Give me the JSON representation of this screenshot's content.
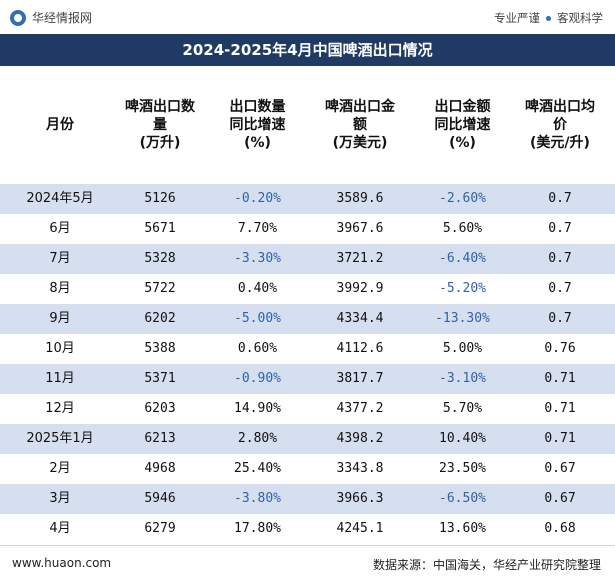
{
  "brand": {
    "name": "华经情报网",
    "tags": [
      "专业严谨",
      "客观科学"
    ]
  },
  "title": "2024-2025年4月中国啤酒出口情况",
  "columns": [
    "月份",
    "啤酒出口数\n量\n(万升)",
    "出口数量\n同比增速\n(%)",
    "啤酒出口金\n额\n(万美元)",
    "出口金额\n同比增速\n(%)",
    "啤酒出口均\n价\n(美元/升)"
  ],
  "rows": [
    [
      "2024年5月",
      "5126",
      "-0.20%",
      "3589.6",
      "-2.60%",
      "0.7"
    ],
    [
      "6月",
      "5671",
      "7.70%",
      "3967.6",
      "5.60%",
      "0.7"
    ],
    [
      "7月",
      "5328",
      "-3.30%",
      "3721.2",
      "-6.40%",
      "0.7"
    ],
    [
      "8月",
      "5722",
      "0.40%",
      "3992.9",
      "-5.20%",
      "0.7"
    ],
    [
      "9月",
      "6202",
      "-5.00%",
      "4334.4",
      "-13.30%",
      "0.7"
    ],
    [
      "10月",
      "5388",
      "0.60%",
      "4112.6",
      "5.00%",
      "0.76"
    ],
    [
      "11月",
      "5371",
      "-0.90%",
      "3817.7",
      "-3.10%",
      "0.71"
    ],
    [
      "12月",
      "6203",
      "14.90%",
      "4377.2",
      "5.70%",
      "0.71"
    ],
    [
      "2025年1月",
      "6213",
      "2.80%",
      "4398.2",
      "10.40%",
      "0.71"
    ],
    [
      "2月",
      "4968",
      "25.40%",
      "3343.8",
      "23.50%",
      "0.67"
    ],
    [
      "3月",
      "5946",
      "-3.80%",
      "3966.3",
      "-6.50%",
      "0.67"
    ],
    [
      "4月",
      "6279",
      "17.80%",
      "4245.1",
      "13.60%",
      "0.68"
    ]
  ],
  "footer": {
    "url": "www.huaon.com",
    "source": "数据来源：中国海关，华经产业研究院整理"
  },
  "colors": {
    "title_bg": "#1f3a63",
    "row_alt": "#d6dff0",
    "negative": "#2f63a8"
  },
  "icons": {
    "logo": "huajing-logo-icon"
  }
}
